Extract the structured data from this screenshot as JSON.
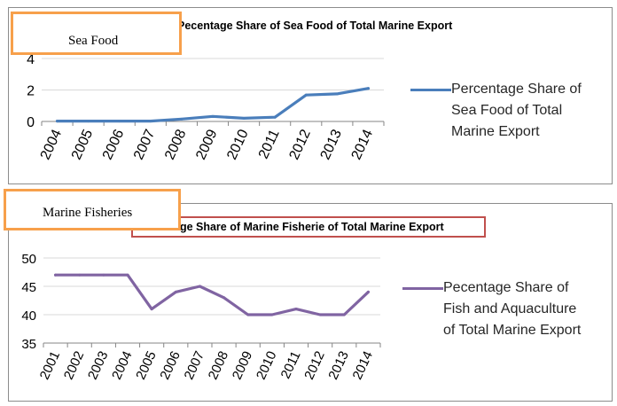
{
  "chart_data": [
    {
      "type": "line",
      "title": "Pecentage Share of Sea Food of Total Marine Export",
      "tag": "Sea Food",
      "categories": [
        "2004",
        "2005",
        "2006",
        "2007",
        "2008",
        "2009",
        "2010",
        "2011",
        "2012",
        "2013",
        "2014"
      ],
      "series": [
        {
          "name": "Percentage Share of Sea Food of Total Marine Export",
          "values": [
            0.02,
            0.02,
            0.02,
            0.02,
            0.15,
            0.32,
            0.2,
            0.27,
            1.68,
            1.75,
            2.1
          ]
        }
      ],
      "ylim": [
        0,
        4
      ],
      "yticks": [
        "0",
        "2",
        "4"
      ],
      "grid": true,
      "legend": "right",
      "color": "#4a7ebb"
    },
    {
      "type": "line",
      "title": "Pecentage Share of Marine Fisherie of Total Marine Export",
      "tag": "Marine Fisheries",
      "categories": [
        "2001",
        "2002",
        "2003",
        "2004",
        "2005",
        "2006",
        "2007",
        "2008",
        "2009",
        "2010",
        "2011",
        "2012",
        "2013",
        "2014"
      ],
      "series": [
        {
          "name": "Pecentage Share of Fish and Aquaculture of Total Marine Export",
          "values": [
            47,
            47,
            47,
            47,
            41,
            44,
            45,
            43,
            40,
            40,
            41,
            40,
            40,
            44
          ]
        }
      ],
      "ylim": [
        35,
        50
      ],
      "yticks": [
        "35",
        "40",
        "45",
        "50"
      ],
      "grid": true,
      "legend": "right",
      "color": "#8064a2"
    }
  ]
}
